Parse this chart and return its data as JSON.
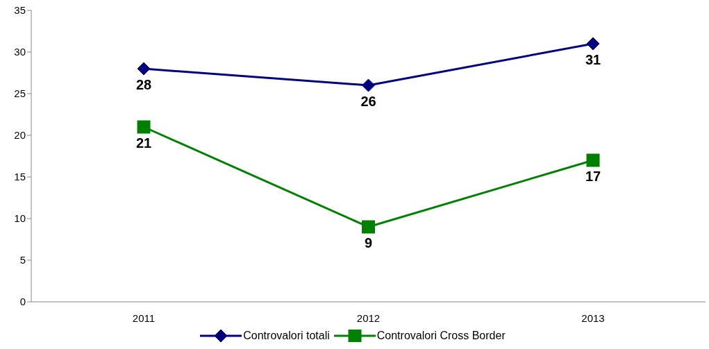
{
  "chart_data": {
    "type": "line",
    "categories": [
      "2011",
      "2012",
      "2013"
    ],
    "series": [
      {
        "name": "Controvalori totali",
        "color": "#000080",
        "values": [
          28,
          26,
          31
        ],
        "marker": "diamond"
      },
      {
        "name": "Controvalori Cross Border",
        "color": "#008000",
        "values": [
          21,
          9,
          17
        ],
        "marker": "square"
      }
    ],
    "ylim": [
      0,
      35
    ],
    "yticks": [
      0,
      5,
      10,
      15,
      20,
      25,
      30,
      35
    ],
    "grid": false,
    "legend": "bottom",
    "data_labels": true,
    "line_style": "solid"
  }
}
